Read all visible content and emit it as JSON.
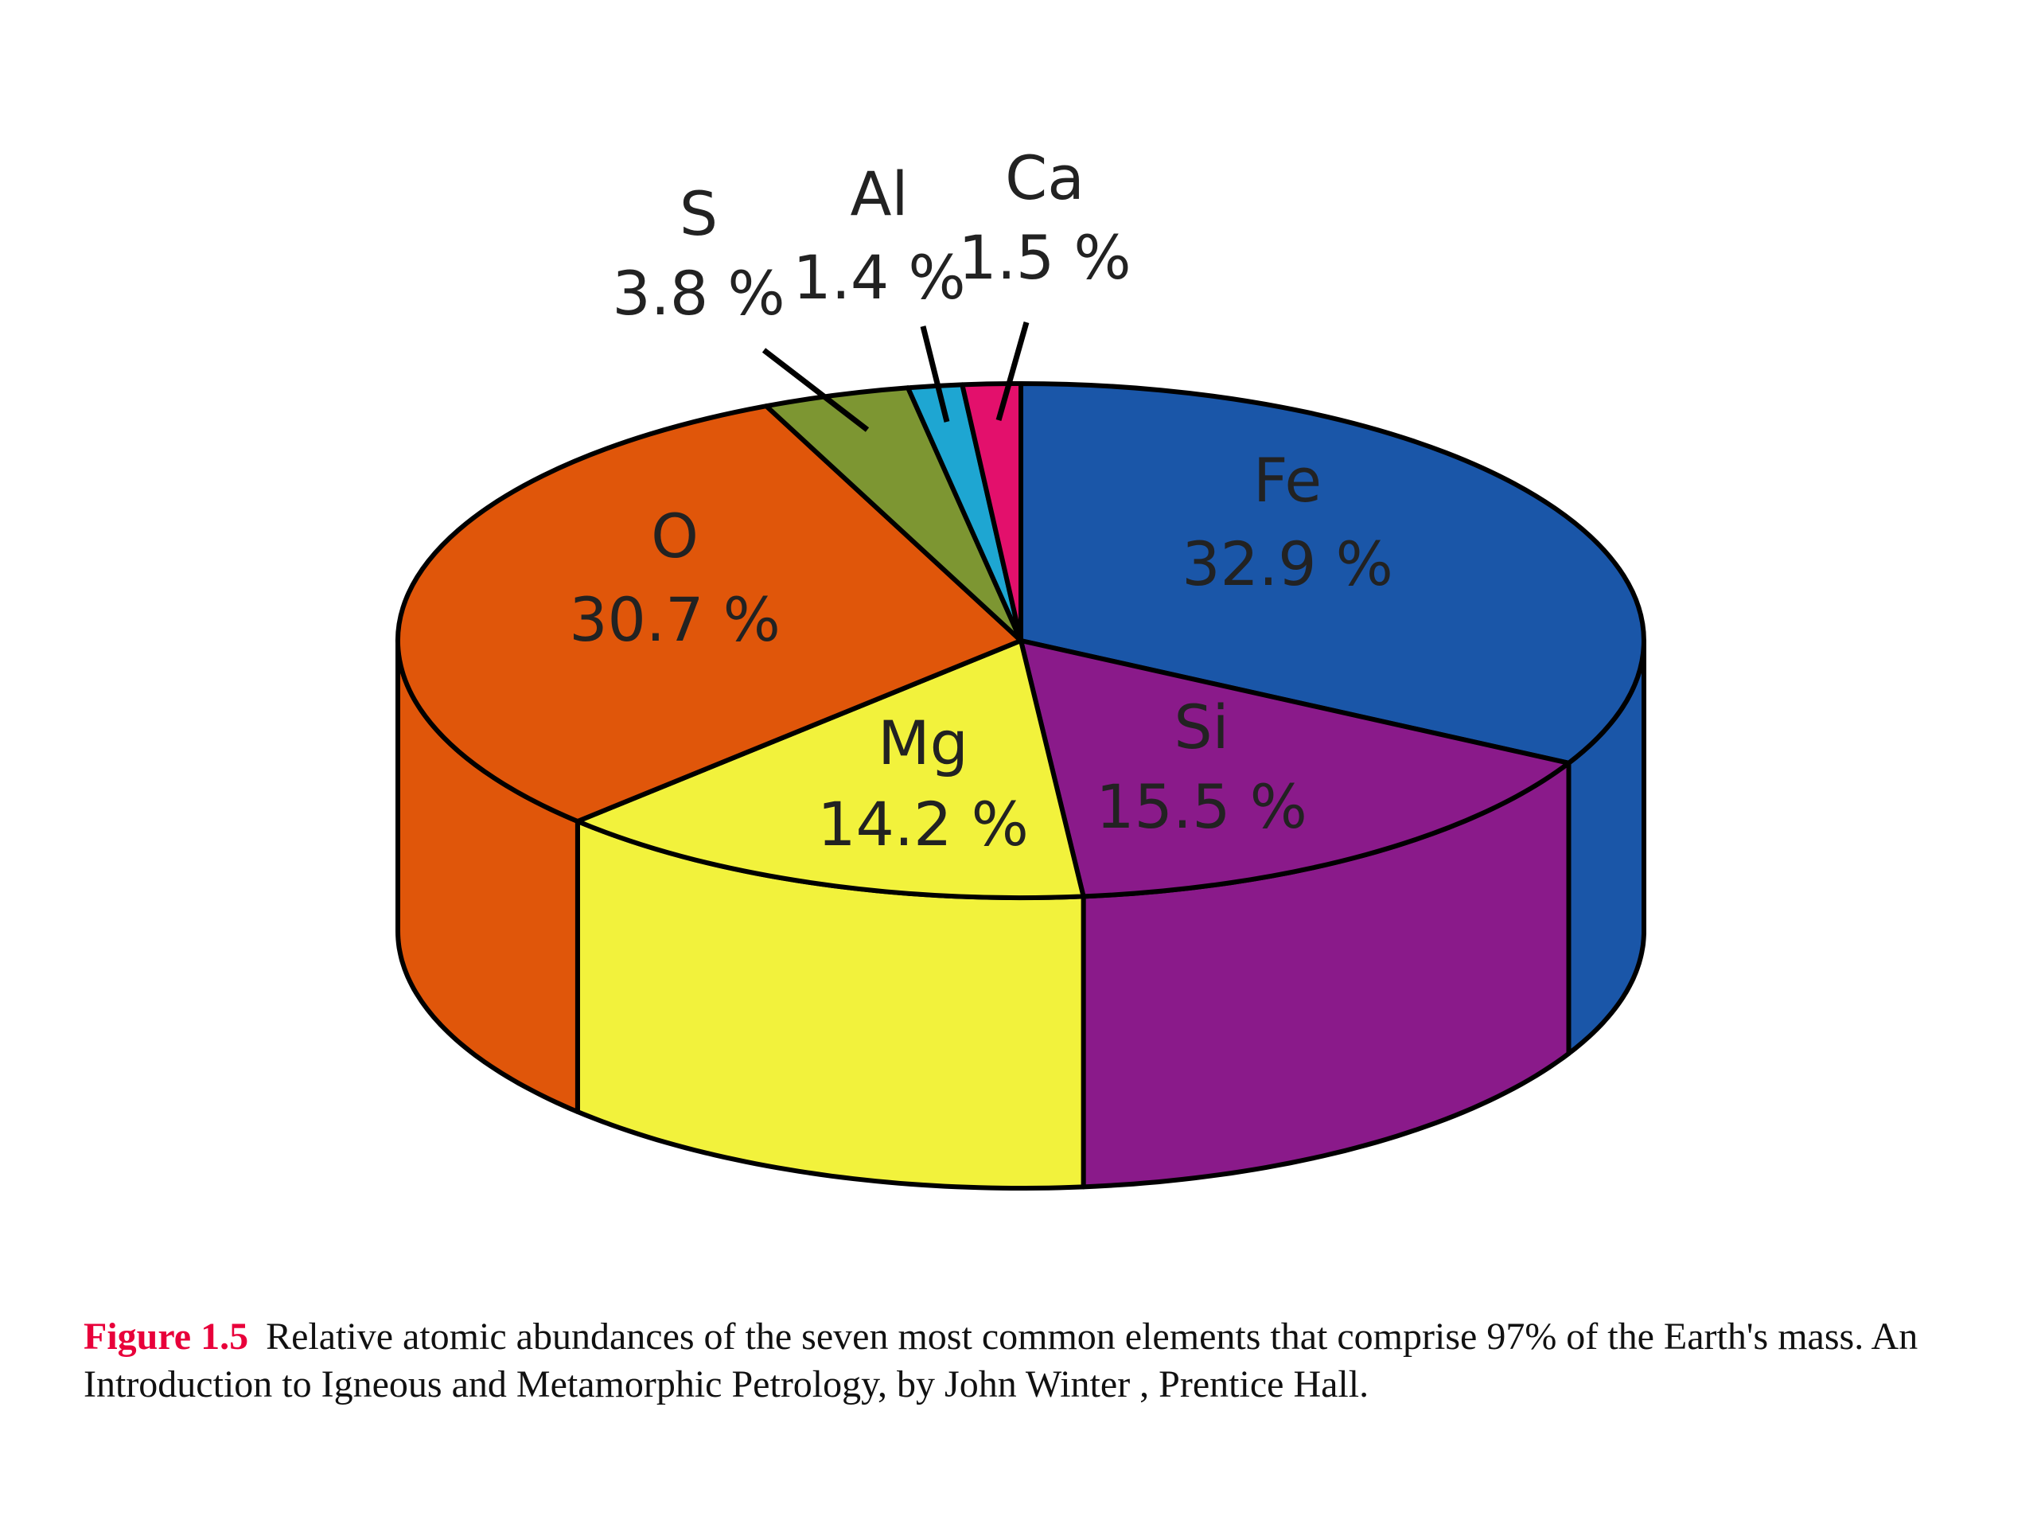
{
  "chart_data": {
    "type": "pie",
    "style": "3d-exploded-cylinder",
    "slices": [
      {
        "label": "Fe",
        "value": 32.9,
        "value_text": "32.9 %",
        "color": "#1a56a8"
      },
      {
        "label": "Si",
        "value": 15.5,
        "value_text": "15.5 %",
        "color": "#8a1a8a"
      },
      {
        "label": "Mg",
        "value": 14.2,
        "value_text": "14.2 %",
        "color": "#f2f23c"
      },
      {
        "label": "O",
        "value": 30.7,
        "value_text": "30.7 %",
        "color": "#e0560a"
      },
      {
        "label": "S",
        "value": 3.8,
        "value_text": "3.8 %",
        "color": "#7d9632"
      },
      {
        "label": "Al",
        "value": 1.4,
        "value_text": "1.4 %",
        "color": "#1ea6d2"
      },
      {
        "label": "Ca",
        "value": 1.5,
        "value_text": "1.5 %",
        "color": "#e3106c"
      }
    ]
  },
  "caption": {
    "figure_label": "Figure 1.5",
    "text": "Relative atomic abundances of the seven most common elements that comprise 97% of the Earth's mass. An Introduction to Igneous and Metamorphic Petrology, by John Winter , Prentice Hall."
  }
}
